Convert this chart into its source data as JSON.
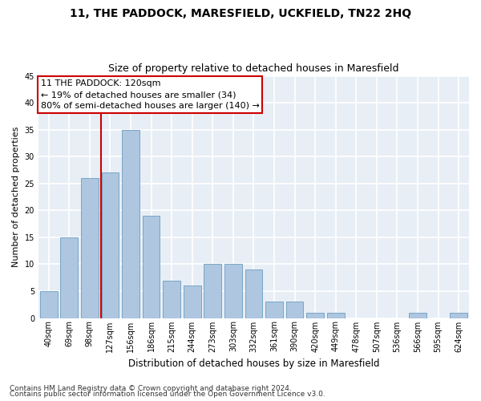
{
  "title": "11, THE PADDOCK, MARESFIELD, UCKFIELD, TN22 2HQ",
  "subtitle": "Size of property relative to detached houses in Maresfield",
  "xlabel": "Distribution of detached houses by size in Maresfield",
  "ylabel": "Number of detached properties",
  "bar_labels": [
    "40sqm",
    "69sqm",
    "98sqm",
    "127sqm",
    "156sqm",
    "186sqm",
    "215sqm",
    "244sqm",
    "273sqm",
    "303sqm",
    "332sqm",
    "361sqm",
    "390sqm",
    "420sqm",
    "449sqm",
    "478sqm",
    "507sqm",
    "536sqm",
    "566sqm",
    "595sqm",
    "624sqm"
  ],
  "bar_values": [
    5,
    15,
    26,
    27,
    35,
    19,
    7,
    6,
    10,
    10,
    9,
    3,
    3,
    1,
    1,
    0,
    0,
    0,
    1,
    0,
    1
  ],
  "bar_color": "#aec6e0",
  "bar_edgecolor": "#6a9fc0",
  "bg_color": "#e8eef5",
  "grid_color": "#ffffff",
  "vline_color": "#cc0000",
  "vline_pos": 2.57,
  "annotation_text": "11 THE PADDOCK: 120sqm\n← 19% of detached houses are smaller (34)\n80% of semi-detached houses are larger (140) →",
  "annotation_box_edgecolor": "#cc0000",
  "annotation_box_facecolor": "#ffffff",
  "ylim": [
    0,
    45
  ],
  "yticks": [
    0,
    5,
    10,
    15,
    20,
    25,
    30,
    35,
    40,
    45
  ],
  "footer_line1": "Contains HM Land Registry data © Crown copyright and database right 2024.",
  "footer_line2": "Contains public sector information licensed under the Open Government Licence v3.0.",
  "title_fontsize": 10,
  "subtitle_fontsize": 9,
  "xlabel_fontsize": 8.5,
  "ylabel_fontsize": 8,
  "tick_fontsize": 7,
  "annotation_fontsize": 8,
  "footer_fontsize": 6.5
}
